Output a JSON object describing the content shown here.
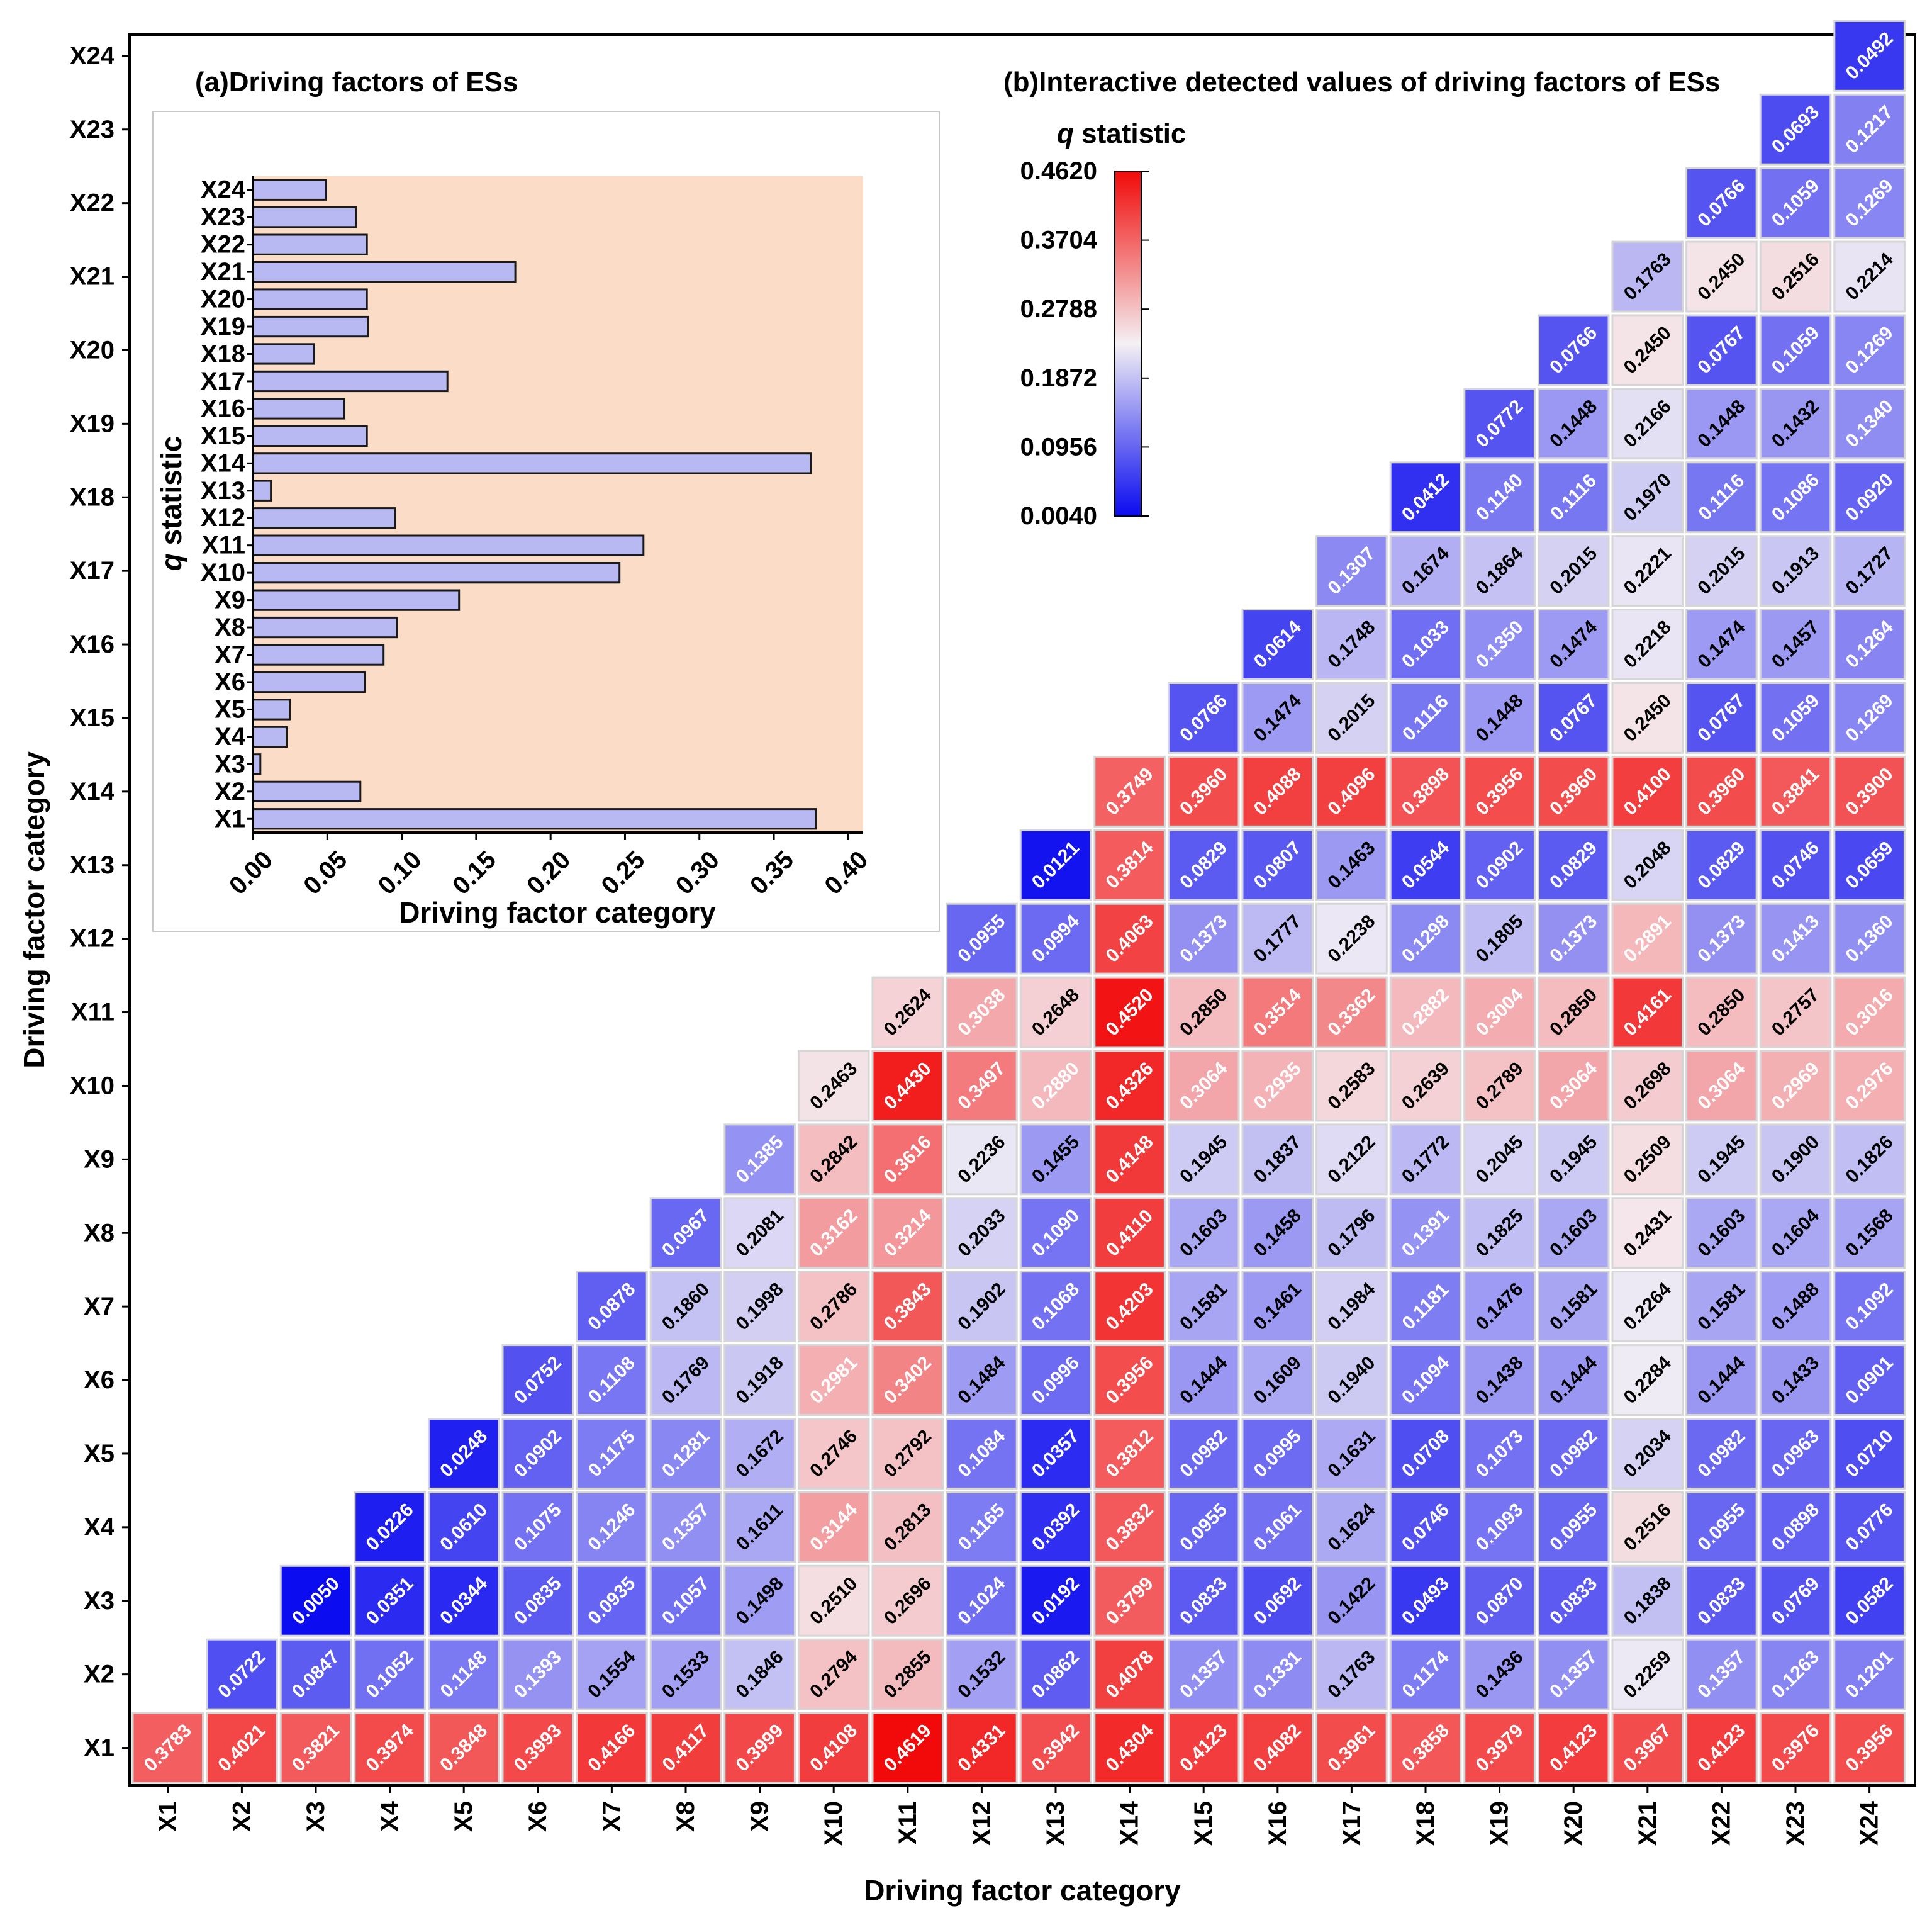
{
  "main_chart": {
    "title": "(b)Interactive detected values of driving factors of ESs",
    "xlabel": "Driving factor category",
    "ylabel": "Driving factor category"
  },
  "inset_chart": {
    "title": "(a)Driving factors of ESs",
    "xlabel": "Driving factor category",
    "ylabel_italic": "q",
    "ylabel_rest": " statistic"
  },
  "colorbar": {
    "title_italic": "q",
    "title_rest": " statistic",
    "tick_labels": [
      "0.4620",
      "0.3704",
      "0.2788",
      "0.1872",
      "0.0956",
      "0.0040"
    ]
  },
  "chart_data": [
    {
      "type": "heatmap",
      "title": "(b)Interactive detected values of driving factors of ESs",
      "xlabel": "Driving factor category",
      "ylabel": "Driving factor category",
      "categories": [
        "X1",
        "X2",
        "X3",
        "X4",
        "X5",
        "X6",
        "X7",
        "X8",
        "X9",
        "X10",
        "X11",
        "X12",
        "X13",
        "X14",
        "X15",
        "X16",
        "X17",
        "X18",
        "X19",
        "X20",
        "X21",
        "X22",
        "X23",
        "X24"
      ],
      "color_range": [
        0.004,
        0.462
      ],
      "colors": {
        "low": "#0b0bf0",
        "mid": "#f4f0f4",
        "high": "#f20a0a"
      },
      "matrix_note": "rows[i][j] is the value for row factor X(i+1) and column factor X(i+j+1) (upper triangle)",
      "rows": [
        [
          "0.3783",
          "0.4021",
          "0.3821",
          "0.3974",
          "0.3848",
          "0.3993",
          "0.4166",
          "0.4117",
          "0.3999",
          "0.4108",
          "0.4619",
          "0.4331",
          "0.3942",
          "0.4304",
          "0.4123",
          "0.4082",
          "0.3961",
          "0.3858",
          "0.3979",
          "0.4123",
          "0.3967",
          "0.4123",
          "0.3976",
          "0.3956"
        ],
        [
          "0.0722",
          "0.0847",
          "0.1052",
          "0.1148",
          "0.1393",
          "0.1554",
          "0.1533",
          "0.1846",
          "0.2794",
          "0.2855",
          "0.1532",
          "0.0862",
          "0.4078",
          "0.1357",
          "0.1331",
          "0.1763",
          "0.1174",
          "0.1436",
          "0.1357",
          "0.2259",
          "0.1357",
          "0.1263",
          "0.1201"
        ],
        [
          "0.0050",
          "0.0351",
          "0.0344",
          "0.0835",
          "0.0935",
          "0.1057",
          "0.1498",
          "0.2510",
          "0.2696",
          "0.1024",
          "0.0192",
          "0.3799",
          "0.0833",
          "0.0692",
          "0.1422",
          "0.0493",
          "0.0870",
          "0.0833",
          "0.1838",
          "0.0833",
          "0.0769",
          "0.0582"
        ],
        [
          "0.0226",
          "0.0610",
          "0.1075",
          "0.1246",
          "0.1357",
          "0.1611",
          "0.3144",
          "0.2813",
          "0.1165",
          "0.0392",
          "0.3832",
          "0.0955",
          "0.1061",
          "0.1624",
          "0.0746",
          "0.1093",
          "0.0955",
          "0.2516",
          "0.0955",
          "0.0898",
          "0.0776"
        ],
        [
          "0.0248",
          "0.0902",
          "0.1175",
          "0.1281",
          "0.1672",
          "0.2746",
          "0.2792",
          "0.1084",
          "0.0357",
          "0.3812",
          "0.0982",
          "0.0995",
          "0.1631",
          "0.0708",
          "0.1073",
          "0.0982",
          "0.2034",
          "0.0982",
          "0.0963",
          "0.0710"
        ],
        [
          "0.0752",
          "0.1108",
          "0.1769",
          "0.1918",
          "0.2981",
          "0.3402",
          "0.1484",
          "0.0996",
          "0.3956",
          "0.1444",
          "0.1609",
          "0.1940",
          "0.1094",
          "0.1438",
          "0.1444",
          "0.2284",
          "0.1444",
          "0.1433",
          "0.0901"
        ],
        [
          "0.0878",
          "0.1860",
          "0.1998",
          "0.2786",
          "0.3843",
          "0.1902",
          "0.1068",
          "0.4203",
          "0.1581",
          "0.1461",
          "0.1984",
          "0.1181",
          "0.1476",
          "0.1581",
          "0.2264",
          "0.1581",
          "0.1488",
          "0.1092"
        ],
        [
          "0.0967",
          "0.2081",
          "0.3162",
          "0.3214",
          "0.2033",
          "0.1090",
          "0.4110",
          "0.1603",
          "0.1458",
          "0.1796",
          "0.1391",
          "0.1825",
          "0.1603",
          "0.2431",
          "0.1603",
          "0.1604",
          "0.1568"
        ],
        [
          "0.1385",
          "0.2842",
          "0.3616",
          "0.2236",
          "0.1455",
          "0.4148",
          "0.1945",
          "0.1837",
          "0.2122",
          "0.1772",
          "0.2045",
          "0.1945",
          "0.2509",
          "0.1945",
          "0.1900",
          "0.1826"
        ],
        [
          "0.2463",
          "0.4430",
          "0.3497",
          "0.2880",
          "0.4326",
          "0.3064",
          "0.2935",
          "0.2583",
          "0.2639",
          "0.2789",
          "0.3064",
          "0.2698",
          "0.3064",
          "0.2969",
          "0.2976"
        ],
        [
          "0.2624",
          "0.3038",
          "0.2648",
          "0.4520",
          "0.2850",
          "0.3514",
          "0.3362",
          "0.2882",
          "0.3004",
          "0.2850",
          "0.4161",
          "0.2850",
          "0.2757",
          "0.3016"
        ],
        [
          "0.0955",
          "0.0994",
          "0.4063",
          "0.1373",
          "0.1777",
          "0.2238",
          "0.1298",
          "0.1805",
          "0.1373",
          "0.2891",
          "0.1373",
          "0.1413",
          "0.1360"
        ],
        [
          "0.0121",
          "0.3814",
          "0.0829",
          "0.0807",
          "0.1463",
          "0.0544",
          "0.0902",
          "0.0829",
          "0.2048",
          "0.0829",
          "0.0746",
          "0.0659"
        ],
        [
          "0.3749",
          "0.3960",
          "0.4088",
          "0.4096",
          "0.3898",
          "0.3956",
          "0.3960",
          "0.4100",
          "0.3960",
          "0.3841",
          "0.3900"
        ],
        [
          "0.0766",
          "0.1474",
          "0.2015",
          "0.1116",
          "0.1448",
          "0.0767",
          "0.2450",
          "0.0767",
          "0.1059",
          "0.1269"
        ],
        [
          "0.0614",
          "0.1748",
          "0.1033",
          "0.1350",
          "0.1474",
          "0.2218",
          "0.1474",
          "0.1457",
          "0.1264"
        ],
        [
          "0.1307",
          "0.1674",
          "0.1864",
          "0.2015",
          "0.2221",
          "0.2015",
          "0.1913",
          "0.1727"
        ],
        [
          "0.0412",
          "0.1140",
          "0.1116",
          "0.1970",
          "0.1116",
          "0.1086",
          "0.0920"
        ],
        [
          "0.0772",
          "0.1448",
          "0.2166",
          "0.1448",
          "0.1432",
          "0.1340"
        ],
        [
          "0.0766",
          "0.2450",
          "0.0767",
          "0.1059",
          "0.1269"
        ],
        [
          "0.1763",
          "0.2450",
          "0.2516",
          "0.2214"
        ],
        [
          "0.0766",
          "0.1059",
          "0.1269"
        ],
        [
          "0.0693",
          "0.1217"
        ],
        [
          "0.0492"
        ]
      ]
    },
    {
      "type": "bar",
      "orientation": "horizontal",
      "title": "(a)Driving factors of ESs",
      "xlabel": "Driving factor category",
      "ylabel": "q statistic",
      "categories": [
        "X1",
        "X2",
        "X3",
        "X4",
        "X5",
        "X6",
        "X7",
        "X8",
        "X9",
        "X10",
        "X11",
        "X12",
        "X13",
        "X14",
        "X15",
        "X16",
        "X17",
        "X18",
        "X19",
        "X20",
        "X21",
        "X22",
        "X23",
        "X24"
      ],
      "values": [
        0.3783,
        0.0722,
        0.005,
        0.0226,
        0.0248,
        0.0752,
        0.0878,
        0.0967,
        0.1385,
        0.2463,
        0.2624,
        0.0955,
        0.0121,
        0.3749,
        0.0766,
        0.0614,
        0.1307,
        0.0412,
        0.0772,
        0.0766,
        0.1763,
        0.0766,
        0.0693,
        0.0492
      ],
      "xlim": [
        0,
        0.41
      ],
      "xticks": [
        "0.00",
        "0.05",
        "0.10",
        "0.15",
        "0.20",
        "0.25",
        "0.30",
        "0.35",
        "0.40"
      ],
      "colors": {
        "bar": "#b8b8f2",
        "background": "#fbdcc6"
      }
    }
  ]
}
